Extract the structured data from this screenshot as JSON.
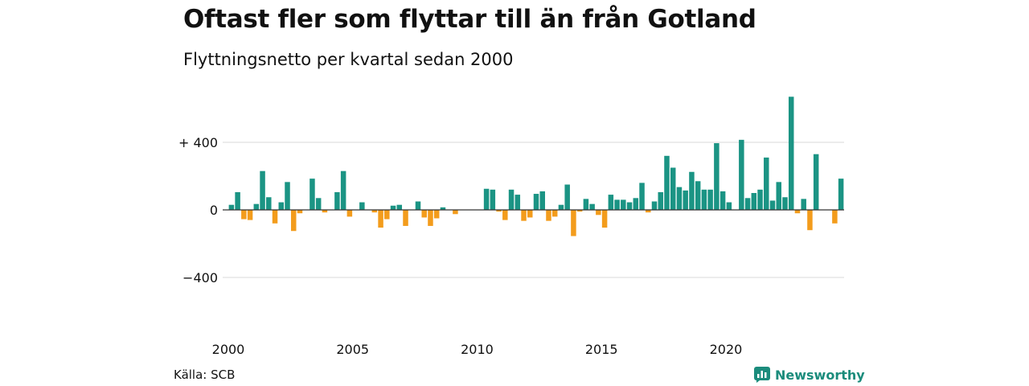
{
  "header": {
    "title": "Oftast fler som flyttar till än från Gotland",
    "subtitle": "Flyttningsnetto per kvartal sedan 2000"
  },
  "footer": {
    "source": "Källa: SCB",
    "brand": "Newsworthy"
  },
  "colors": {
    "positive": "#1b9484",
    "negative": "#f39c1c",
    "grid": "#d9d9d9",
    "zero_line": "#333333",
    "brand": "#1b8c7c"
  },
  "icons": {
    "logo": "newsworthy-logo-icon"
  },
  "chart_data": {
    "type": "bar",
    "title": "Oftast fler som flyttar till än från Gotland",
    "subtitle": "Flyttningsnetto per kvartal sedan 2000",
    "ylim": [
      -600,
      700
    ],
    "yticks": [
      {
        "value": 400,
        "label": "+ 400"
      },
      {
        "value": 0,
        "label": "0"
      },
      {
        "value": -400,
        "label": "−400"
      }
    ],
    "xticks": [
      {
        "value": 2000,
        "label": "2000"
      },
      {
        "value": 2005,
        "label": "2005"
      },
      {
        "value": 2010,
        "label": "2010"
      },
      {
        "value": 2015,
        "label": "2015"
      },
      {
        "value": 2020,
        "label": "2020"
      }
    ],
    "x_start": 2000,
    "grid": true,
    "series": [
      {
        "values": [
          30,
          105,
          -55,
          -60,
          35,
          230,
          75,
          -80,
          45,
          165,
          -125,
          -20,
          0,
          185,
          70,
          -15,
          0,
          105,
          230,
          -40,
          0,
          45,
          0,
          -15,
          -105,
          -55,
          25,
          30,
          -95,
          0,
          50,
          -45,
          -95,
          -50,
          15,
          0,
          -25,
          0,
          0,
          0,
          0,
          125,
          120,
          -10,
          -60,
          120,
          90,
          -65,
          -45,
          95,
          110,
          -65,
          -40,
          30,
          150,
          -155,
          -10,
          65,
          35,
          -30,
          -105,
          90,
          60,
          60,
          45,
          70,
          160,
          -15,
          50,
          105,
          320,
          250,
          135,
          115,
          225,
          170,
          120,
          120,
          395,
          110,
          45,
          0,
          415,
          70,
          100,
          120,
          310,
          55,
          165,
          75,
          670,
          -20,
          65,
          -120,
          330,
          0,
          0,
          -80,
          185
        ]
      }
    ]
  }
}
